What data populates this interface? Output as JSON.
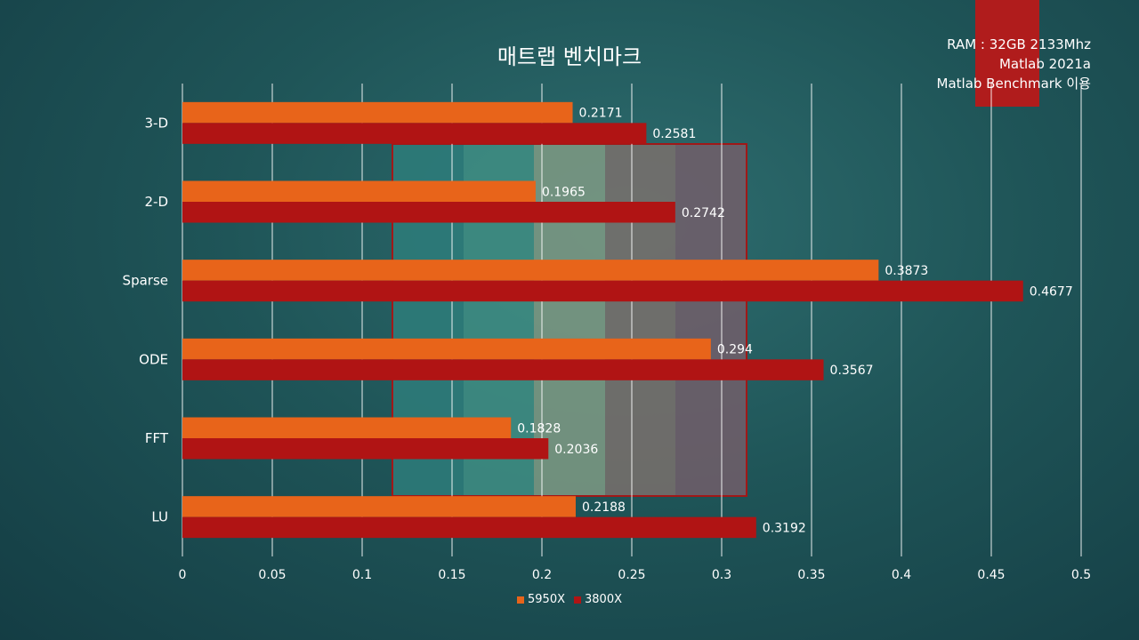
{
  "chart_data": {
    "type": "bar",
    "orientation": "horizontal",
    "title": "매트랩 벤치마크",
    "annotation_lines": [
      "RAM : 32GB 2133Mhz",
      "Matlab 2021a",
      "Matlab Benchmark 이용"
    ],
    "categories": [
      "3-D",
      "2-D",
      "Sparse",
      "ODE",
      "FFT",
      "LU"
    ],
    "series": [
      {
        "name": "5950X",
        "color": "#e8641a",
        "values": [
          0.2171,
          0.1965,
          0.3873,
          0.294,
          0.1828,
          0.2188
        ]
      },
      {
        "name": "3800X",
        "color": "#b01414",
        "values": [
          0.2581,
          0.2742,
          0.4677,
          0.3567,
          0.2036,
          0.3192
        ]
      }
    ],
    "xlim": [
      0,
      0.5
    ],
    "xticks": [
      "0",
      "0.05",
      "0.1",
      "0.15",
      "0.2",
      "0.25",
      "0.3",
      "0.35",
      "0.4",
      "0.45",
      "0.5"
    ],
    "grid": true,
    "legend_position": "bottom"
  },
  "watermark_colors": [
    "#2e7d7a",
    "#3f8e84",
    "#7f9a84",
    "#7a706c",
    "#725e6a"
  ]
}
